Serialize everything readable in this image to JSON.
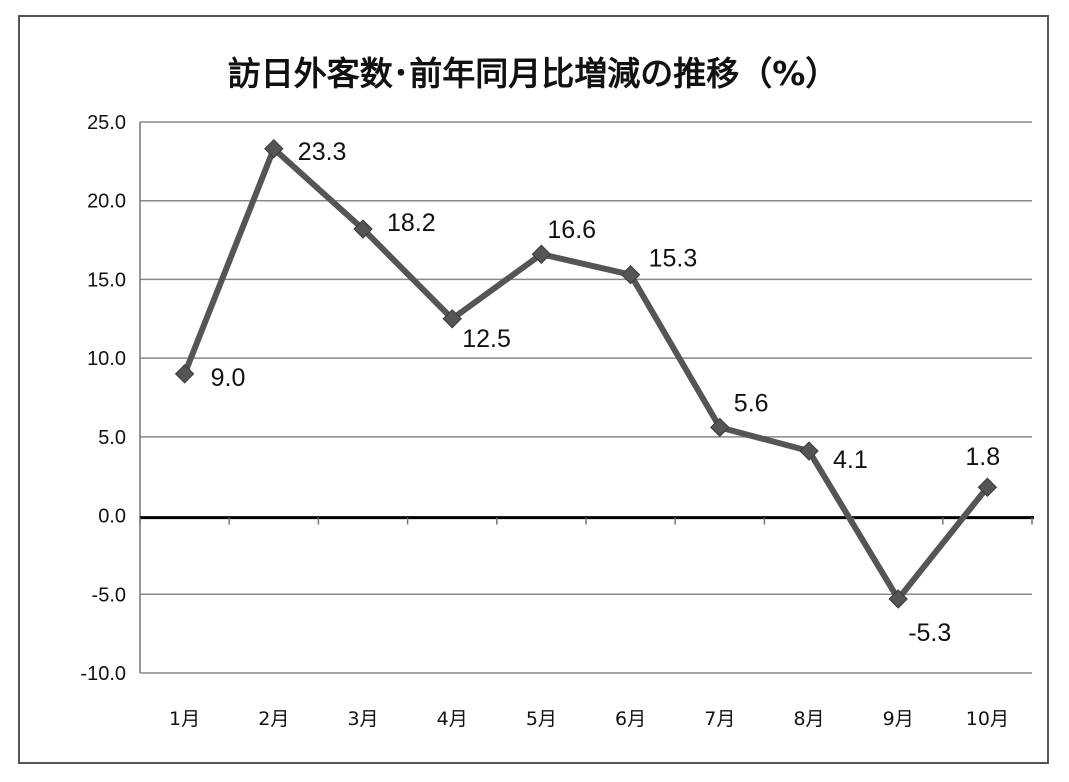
{
  "chart_data": {
    "type": "line",
    "title": "訪日外客数･前年同月比増減の推移（%）",
    "categories": [
      "1月",
      "2月",
      "3月",
      "4月",
      "5月",
      "6月",
      "7月",
      "8月",
      "9月",
      "10月"
    ],
    "series": [
      {
        "values": [
          9.0,
          23.3,
          18.2,
          12.5,
          16.6,
          15.3,
          5.6,
          4.1,
          -5.3,
          1.8
        ],
        "data_labels": [
          "9.0",
          "23.3",
          "18.2",
          "12.5",
          "16.6",
          "15.3",
          "5.6",
          "4.1",
          "-5.3",
          "1.8"
        ]
      }
    ],
    "ylim": [
      -10.0,
      25.0
    ],
    "yticks": [
      25.0,
      20.0,
      15.0,
      10.0,
      5.0,
      0.0,
      -5.0,
      -10.0
    ],
    "ytick_labels": [
      "25.0",
      "20.0",
      "15.0",
      "10.0",
      "5.0",
      "0.0",
      "-5.0",
      "-10.0"
    ],
    "grid": true,
    "line_color": "#555555",
    "marker": "diamond"
  }
}
